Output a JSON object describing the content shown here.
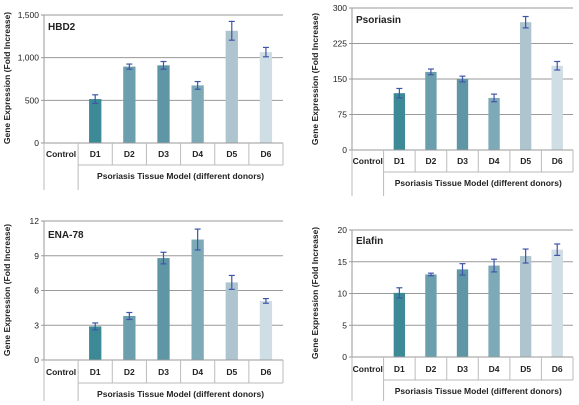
{
  "chart_data": [
    {
      "type": "bar",
      "title": "HBD2",
      "ylabel": "Gene Expression (Fold Increase)",
      "xlabel": "Psoriasis Tissue Model (different donors)",
      "categories": [
        "Control",
        "D1",
        "D2",
        "D3",
        "D4",
        "D5",
        "D6"
      ],
      "values": [
        0,
        515,
        895,
        910,
        675,
        1315,
        1065
      ],
      "errors": [
        0,
        50,
        30,
        45,
        45,
        110,
        55
      ],
      "ylim": [
        0,
        1500
      ],
      "yticks": [
        "0",
        "500",
        "1,000",
        "1,500"
      ],
      "grid": true,
      "colors": [
        "#3b8a96",
        "#3b8a96",
        "#6b9fae",
        "#5f96a6",
        "#7eaab8",
        "#aec5d0",
        "#cfdde4"
      ]
    },
    {
      "type": "bar",
      "title": "Psoriasin",
      "ylabel": "Gene Expression (Fold Increase)",
      "xlabel": "Psoriasis Tissue Model (different donors)",
      "categories": [
        "Control",
        "D1",
        "D2",
        "D3",
        "D4",
        "D5",
        "D6"
      ],
      "values": [
        0,
        120,
        165,
        150,
        110,
        270,
        178
      ],
      "errors": [
        0,
        10,
        6,
        6,
        8,
        12,
        9
      ],
      "ylim": [
        0,
        300
      ],
      "yticks": [
        "0",
        "75",
        "150",
        "225",
        "300"
      ],
      "grid": true,
      "colors": [
        "#3b8a96",
        "#3b8a96",
        "#6b9fae",
        "#5f96a6",
        "#7eaab8",
        "#aec5d0",
        "#cfdde4"
      ]
    },
    {
      "type": "bar",
      "title": "ENA-78",
      "ylabel": "Gene Expression (Fold Increase)",
      "xlabel": "Psoriasis Tissue Model (different donors)",
      "categories": [
        "Control",
        "D1",
        "D2",
        "D3",
        "D4",
        "D5",
        "D6"
      ],
      "values": [
        0,
        2.9,
        3.8,
        8.8,
        10.4,
        6.7,
        5.1
      ],
      "errors": [
        0,
        0.3,
        0.3,
        0.5,
        0.9,
        0.6,
        0.2
      ],
      "ylim": [
        0,
        12
      ],
      "yticks": [
        "0",
        "3",
        "6",
        "9",
        "12"
      ],
      "grid": true,
      "colors": [
        "#3b8a96",
        "#3b8a96",
        "#6b9fae",
        "#5f96a6",
        "#7eaab8",
        "#aec5d0",
        "#cfdde4"
      ]
    },
    {
      "type": "bar",
      "title": "Elafin",
      "ylabel": "Gene Expression (Fold Increase)",
      "xlabel": "Psoriasis Tissue Model (different donors)",
      "categories": [
        "Control",
        "D1",
        "D2",
        "D3",
        "D4",
        "D5",
        "D6"
      ],
      "values": [
        0,
        10.1,
        13.0,
        13.8,
        14.4,
        15.9,
        16.9
      ],
      "errors": [
        0,
        0.8,
        0.2,
        0.9,
        1.0,
        1.1,
        0.9
      ],
      "ylim": [
        0,
        20
      ],
      "yticks": [
        "0",
        "5",
        "10",
        "15",
        "20"
      ],
      "grid": true,
      "colors": [
        "#3b8a96",
        "#3b8a96",
        "#6b9fae",
        "#5f96a6",
        "#7eaab8",
        "#aec5d0",
        "#cfdde4"
      ]
    }
  ]
}
